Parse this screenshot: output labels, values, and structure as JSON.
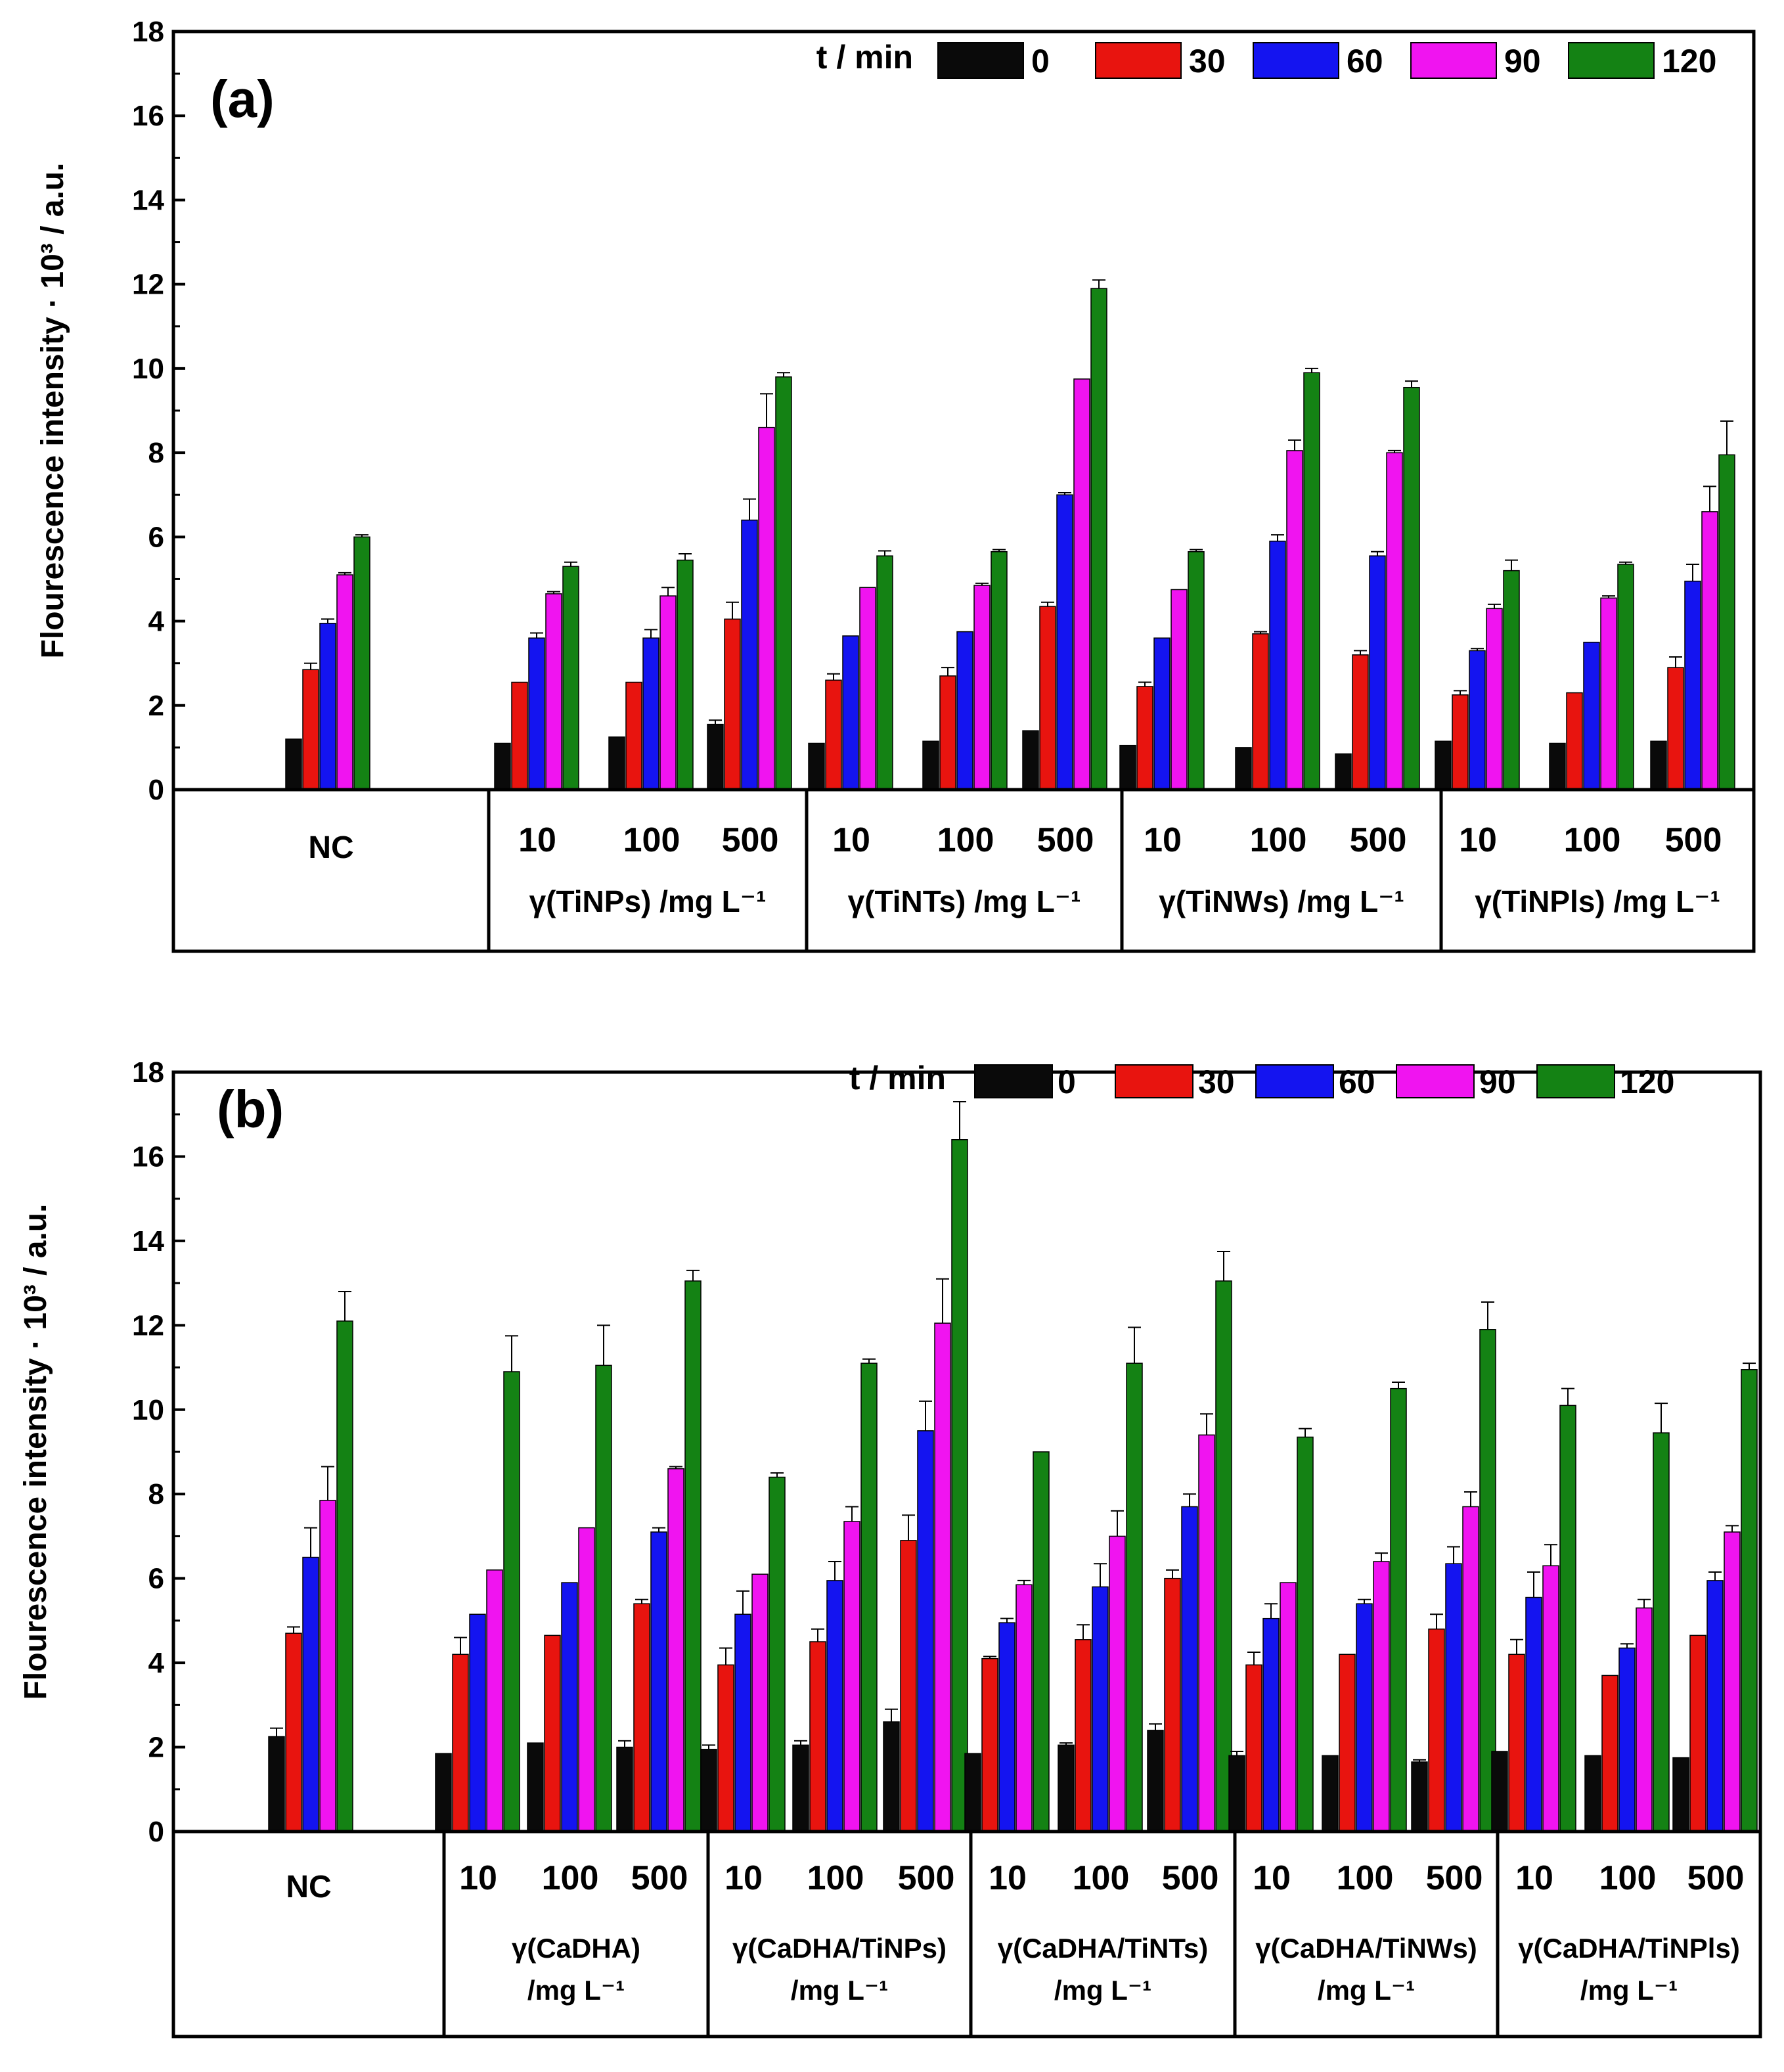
{
  "colors": {
    "t0": "#0a0a0a",
    "t30": "#e8140f",
    "t60": "#1414f0",
    "t90": "#f014f0",
    "t120": "#148214",
    "axis": "#000000"
  },
  "legend": {
    "title": "t / min",
    "entries": [
      "0",
      "30",
      "60",
      "90",
      "120"
    ]
  },
  "chart_data": [
    {
      "type": "bar",
      "panel_label": "(a)",
      "ylabel": "Flourescence intensity · 10³ / a.u.",
      "ylim": [
        0,
        18
      ],
      "yticks": [
        "0",
        "2",
        "4",
        "6",
        "8",
        "10",
        "12",
        "14",
        "16",
        "18"
      ],
      "series_names": [
        "0",
        "30",
        "60",
        "90",
        "120"
      ],
      "groups": [
        {
          "label": "NC",
          "conc_labels": [],
          "type_lines": [],
          "data": [
            [
              1.2,
              2.85,
              3.95,
              5.1,
              6.0
            ]
          ],
          "errors": [
            [
              0,
              0.15,
              0.1,
              0.05,
              0.05
            ]
          ]
        },
        {
          "label": "",
          "conc_labels": [
            "10",
            "100",
            "500"
          ],
          "type_lines": [
            "γ(TiNPs) /mg L⁻¹"
          ],
          "data": [
            [
              1.1,
              2.55,
              3.6,
              4.65,
              5.3
            ],
            [
              1.25,
              2.55,
              3.6,
              4.6,
              5.45
            ],
            [
              1.55,
              4.05,
              6.4,
              8.6,
              9.8
            ]
          ],
          "errors": [
            [
              0,
              0,
              0.12,
              0.05,
              0.1
            ],
            [
              0,
              0,
              0.2,
              0.2,
              0.15
            ],
            [
              0.1,
              0.4,
              0.5,
              0.8,
              0.1
            ]
          ]
        },
        {
          "label": "",
          "conc_labels": [
            "10",
            "100",
            "500"
          ],
          "type_lines": [
            "γ(TiNTs) /mg L⁻¹"
          ],
          "data": [
            [
              1.1,
              2.6,
              3.65,
              4.8,
              5.55
            ],
            [
              1.15,
              2.7,
              3.75,
              4.85,
              5.65
            ],
            [
              1.4,
              4.35,
              7.0,
              9.75,
              11.9
            ]
          ],
          "errors": [
            [
              0,
              0.15,
              0,
              0,
              0.12
            ],
            [
              0,
              0.2,
              0,
              0.05,
              0.05
            ],
            [
              0,
              0.1,
              0.05,
              0,
              0.2
            ]
          ]
        },
        {
          "label": "",
          "conc_labels": [
            "10",
            "100",
            "500"
          ],
          "type_lines": [
            "γ(TiNWs) /mg L⁻¹"
          ],
          "data": [
            [
              1.05,
              2.45,
              3.6,
              4.75,
              5.65
            ],
            [
              1.0,
              3.7,
              5.9,
              8.05,
              9.9
            ],
            [
              0.85,
              3.2,
              5.55,
              8.0,
              9.55
            ]
          ],
          "errors": [
            [
              0,
              0.1,
              0,
              0,
              0.05
            ],
            [
              0,
              0.05,
              0.15,
              0.25,
              0.1
            ],
            [
              0,
              0.1,
              0.1,
              0.05,
              0.15
            ]
          ]
        },
        {
          "label": "",
          "conc_labels": [
            "10",
            "100",
            "500"
          ],
          "type_lines": [
            "γ(TiNPls) /mg L⁻¹"
          ],
          "data": [
            [
              1.15,
              2.25,
              3.3,
              4.3,
              5.2
            ],
            [
              1.1,
              2.3,
              3.5,
              4.55,
              5.35
            ],
            [
              1.15,
              2.9,
              4.95,
              6.6,
              7.95
            ]
          ],
          "errors": [
            [
              0,
              0.1,
              0.05,
              0.1,
              0.25
            ],
            [
              0,
              0,
              0,
              0.05,
              0.05
            ],
            [
              0,
              0.25,
              0.4,
              0.6,
              0.8
            ]
          ]
        }
      ]
    },
    {
      "type": "bar",
      "panel_label": "(b)",
      "ylabel": "Flourescence intensity · 10³ / a.u.",
      "ylim": [
        0,
        18
      ],
      "yticks": [
        "0",
        "2",
        "4",
        "6",
        "8",
        "10",
        "12",
        "14",
        "16",
        "18"
      ],
      "series_names": [
        "0",
        "30",
        "60",
        "90",
        "120"
      ],
      "groups": [
        {
          "label": "NC",
          "conc_labels": [],
          "type_lines": [],
          "data": [
            [
              2.25,
              4.7,
              6.5,
              7.85,
              12.1
            ]
          ],
          "errors": [
            [
              0.2,
              0.15,
              0.7,
              0.8,
              0.7
            ]
          ]
        },
        {
          "label": "",
          "conc_labels": [
            "10",
            "100",
            "500"
          ],
          "type_lines": [
            "γ(CaDHA)",
            "/mg L⁻¹"
          ],
          "data": [
            [
              1.85,
              4.2,
              5.15,
              6.2,
              10.9
            ],
            [
              2.1,
              4.65,
              5.9,
              7.2,
              11.05
            ],
            [
              2.0,
              5.4,
              7.1,
              8.6,
              13.05
            ]
          ],
          "errors": [
            [
              0,
              0.4,
              0,
              0,
              0.85
            ],
            [
              0,
              0,
              0,
              0,
              0.95
            ],
            [
              0.15,
              0.1,
              0.1,
              0.05,
              0.25
            ]
          ]
        },
        {
          "label": "",
          "conc_labels": [
            "10",
            "100",
            "500"
          ],
          "type_lines": [
            "γ(CaDHA/TiNPs)",
            "/mg L⁻¹"
          ],
          "data": [
            [
              1.95,
              3.95,
              5.15,
              6.1,
              8.4
            ],
            [
              2.05,
              4.5,
              5.95,
              7.35,
              11.1
            ],
            [
              2.6,
              6.9,
              9.5,
              12.05,
              16.4
            ]
          ],
          "errors": [
            [
              0.1,
              0.4,
              0.55,
              0,
              0.1
            ],
            [
              0.1,
              0.3,
              0.45,
              0.35,
              0.1
            ],
            [
              0.3,
              0.6,
              0.7,
              1.05,
              0.9
            ]
          ]
        },
        {
          "label": "",
          "conc_labels": [
            "10",
            "100",
            "500"
          ],
          "type_lines": [
            "γ(CaDHA/TiNTs)",
            "/mg L⁻¹"
          ],
          "data": [
            [
              1.85,
              4.1,
              4.95,
              5.85,
              9.0
            ],
            [
              2.05,
              4.55,
              5.8,
              7.0,
              11.1
            ],
            [
              2.4,
              6.0,
              7.7,
              9.4,
              13.05
            ]
          ],
          "errors": [
            [
              0,
              0.05,
              0.1,
              0.1,
              0
            ],
            [
              0.05,
              0.35,
              0.55,
              0.6,
              0.85
            ],
            [
              0.15,
              0.2,
              0.3,
              0.5,
              0.7
            ]
          ]
        },
        {
          "label": "",
          "conc_labels": [
            "10",
            "100",
            "500"
          ],
          "type_lines": [
            "γ(CaDHA/TiNWs)",
            "/mg L⁻¹"
          ],
          "data": [
            [
              1.8,
              3.95,
              5.05,
              5.9,
              9.35
            ],
            [
              1.8,
              4.2,
              5.4,
              6.4,
              10.5
            ],
            [
              1.65,
              4.8,
              6.35,
              7.7,
              11.9
            ]
          ],
          "errors": [
            [
              0.1,
              0.3,
              0.35,
              0,
              0.2
            ],
            [
              0,
              0,
              0.1,
              0.2,
              0.15
            ],
            [
              0.05,
              0.35,
              0.4,
              0.35,
              0.65
            ]
          ]
        },
        {
          "label": "",
          "conc_labels": [
            "10",
            "100",
            "500"
          ],
          "type_lines": [
            "γ(CaDHA/TiNPls)",
            "/mg L⁻¹"
          ],
          "data": [
            [
              1.9,
              4.2,
              5.55,
              6.3,
              10.1
            ],
            [
              1.8,
              3.7,
              4.35,
              5.3,
              9.45
            ],
            [
              1.75,
              4.65,
              5.95,
              7.1,
              10.95
            ]
          ],
          "errors": [
            [
              0,
              0.35,
              0.6,
              0.5,
              0.4
            ],
            [
              0,
              0,
              0.1,
              0.2,
              0.7
            ],
            [
              0,
              0,
              0.2,
              0.15,
              0.15
            ]
          ]
        }
      ]
    }
  ]
}
